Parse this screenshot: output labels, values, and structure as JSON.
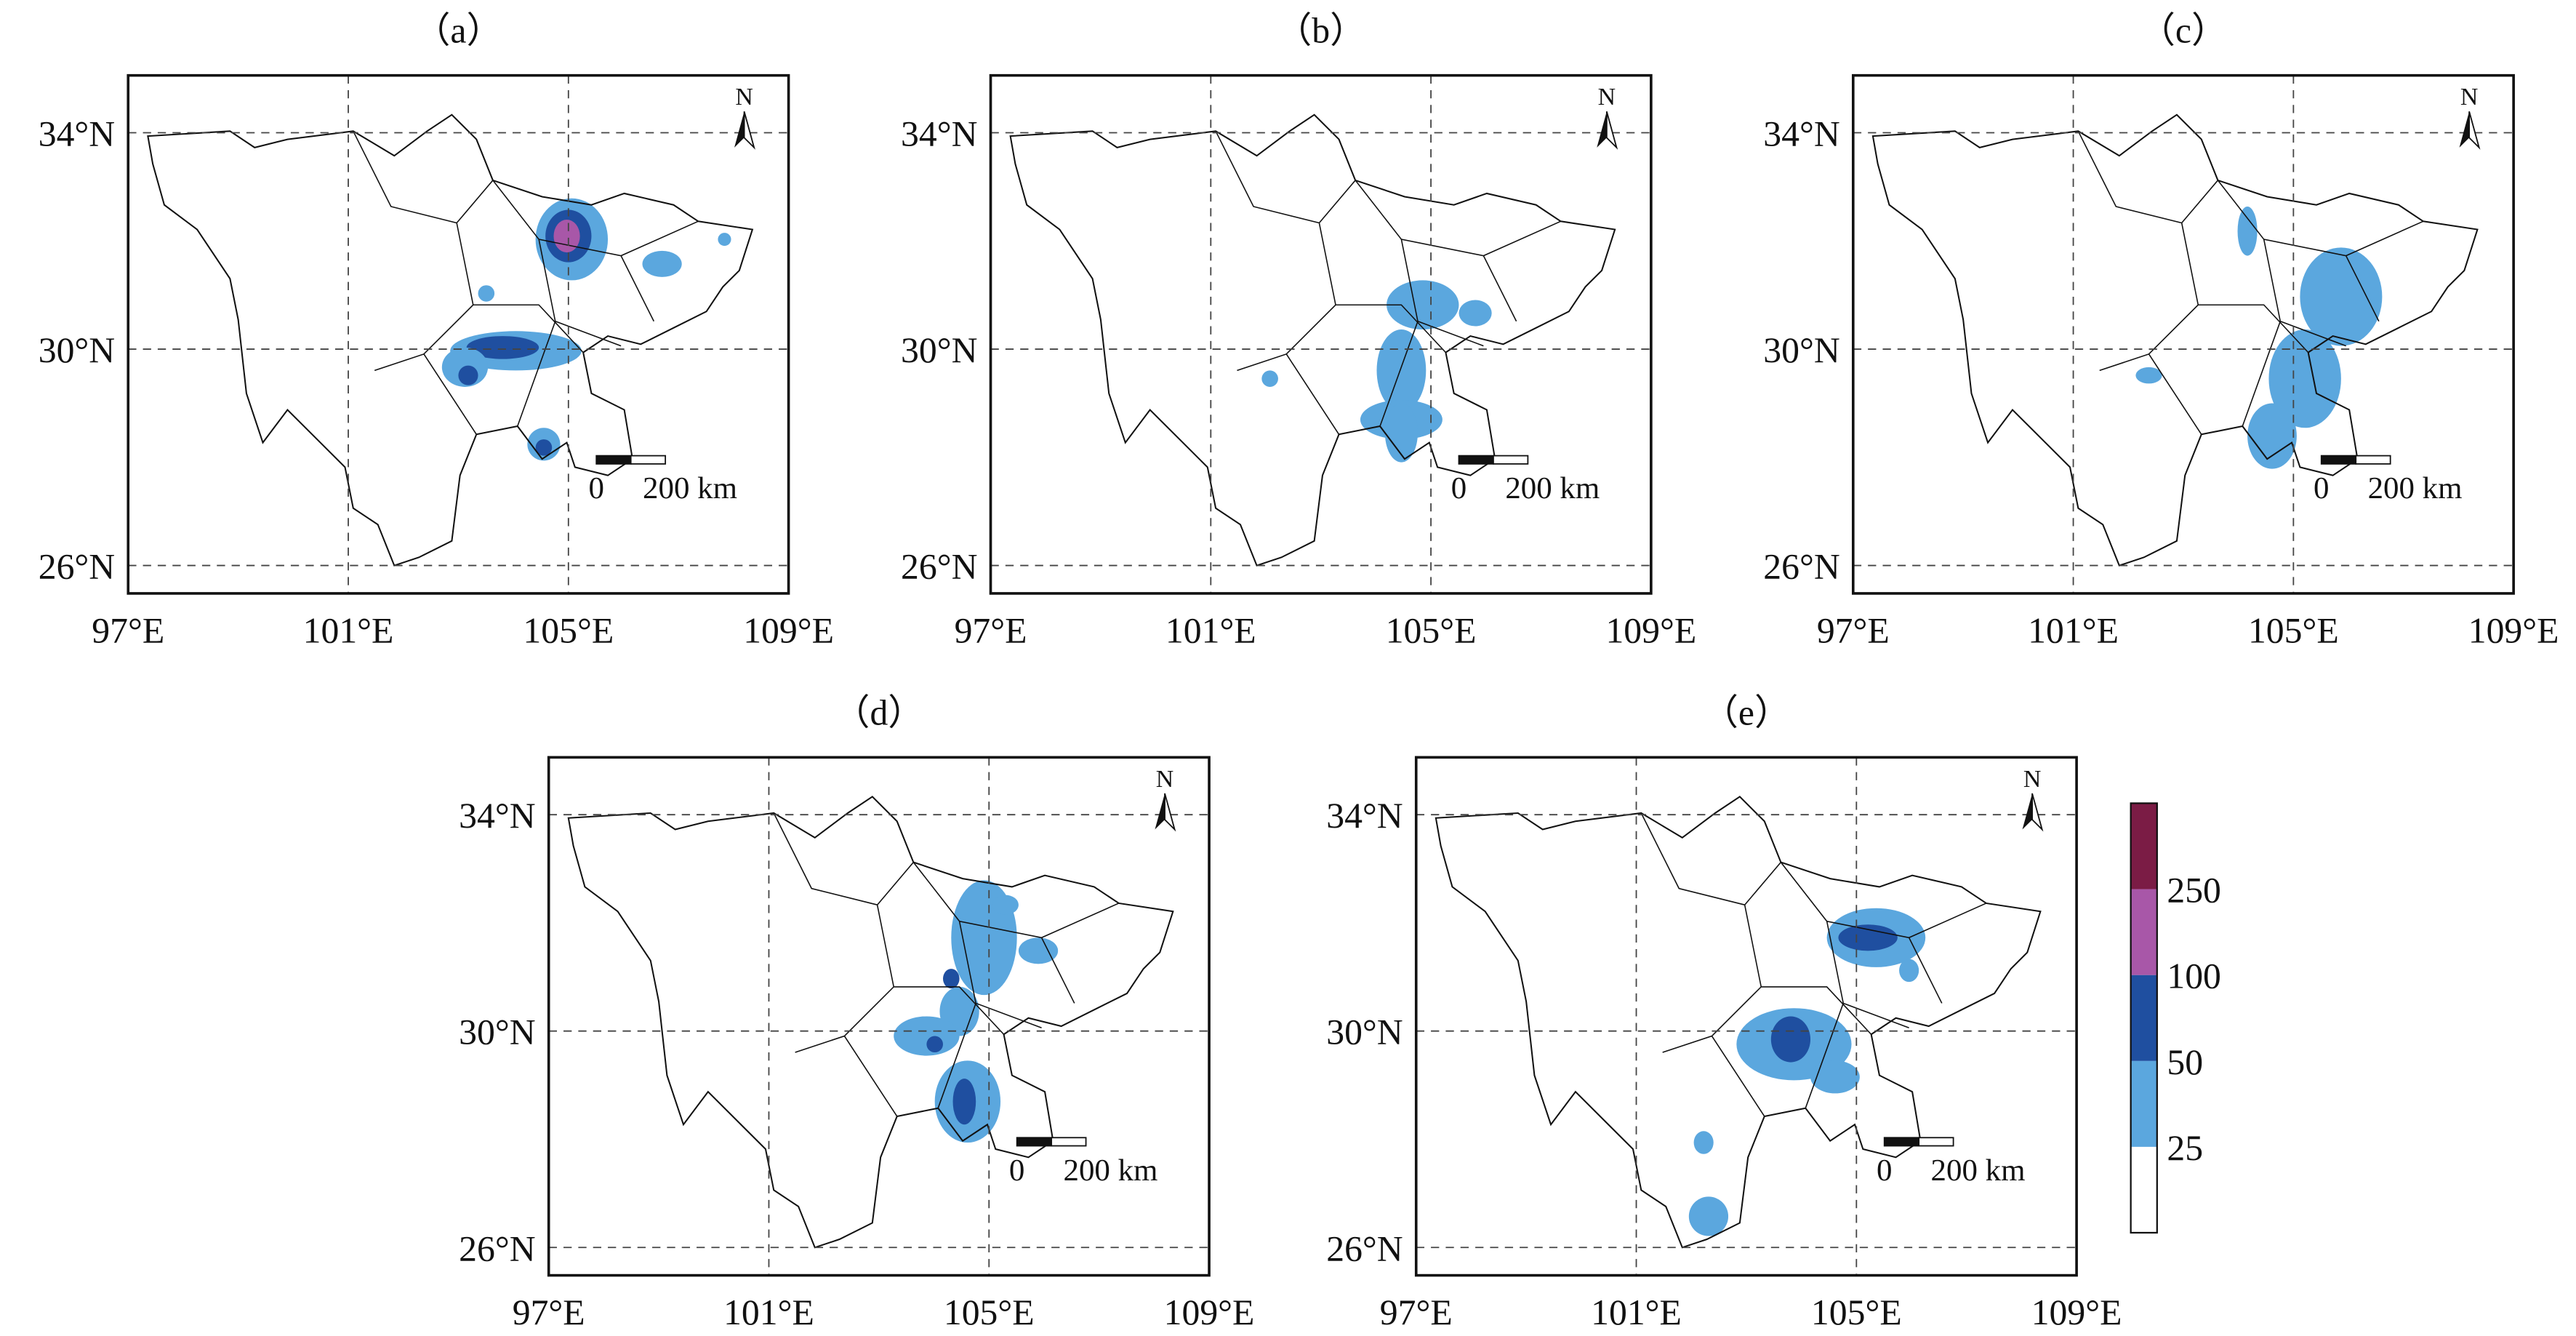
{
  "panels": [
    {
      "label": "（a）"
    },
    {
      "label": "（b）"
    },
    {
      "label": "（c）"
    },
    {
      "label": "（d）"
    },
    {
      "label": "（e）"
    }
  ],
  "lon_labels": [
    "97°E",
    "101°E",
    "105°E",
    "109°E"
  ],
  "lat_labels": [
    "34°N",
    "30°N",
    "26°N"
  ],
  "north": "N",
  "scale_bar": {
    "zero": "0",
    "distance": "200 km"
  },
  "colorbar": {
    "levels": [
      25,
      50,
      100,
      250
    ],
    "colors": [
      "#ffffff",
      "#5ba7de",
      "#1f4fa0",
      "#a857a8",
      "#7b1c45"
    ]
  }
}
